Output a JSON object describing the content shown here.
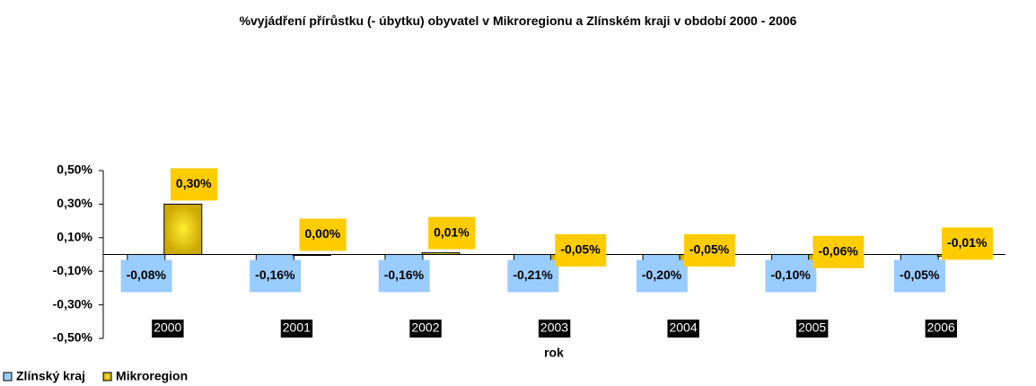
{
  "chart_data": {
    "type": "bar",
    "title": "%vyjádření přírůstku (- úbytku) obyvatel v Mikroregionu a Zlínském kraji v období 2000 - 2006",
    "x_label": "rok",
    "categories": [
      "2000",
      "2001",
      "2002",
      "2003",
      "2004",
      "2005",
      "2006"
    ],
    "series": [
      {
        "name": "Zlínský kraj",
        "color": "#99ccff",
        "values": [
          -0.08,
          -0.16,
          -0.16,
          -0.21,
          -0.2,
          -0.1,
          -0.05
        ],
        "value_labels": [
          "-0,08%",
          "-0,16%",
          "-0,16%",
          "-0,21%",
          "-0,20%",
          "-0,10%",
          "-0,05%"
        ]
      },
      {
        "name": "Mikroregion",
        "color": "#ccaa00",
        "values": [
          0.3,
          0.0,
          0.01,
          -0.05,
          -0.05,
          -0.06,
          -0.01
        ],
        "value_labels": [
          "0,30%",
          "0,00%",
          "0,01%",
          "-0,05%",
          "-0,05%",
          "-0,06%",
          "-0,01%"
        ]
      }
    ],
    "ylim": [
      -0.5,
      0.5
    ],
    "yticks": [
      {
        "value": -0.5,
        "label": "-0,50%"
      },
      {
        "value": -0.3,
        "label": "-0,30%"
      },
      {
        "value": -0.1,
        "label": "-0,10%"
      },
      {
        "value": 0.1,
        "label": "0,10%"
      },
      {
        "value": 0.3,
        "label": "0,30%"
      },
      {
        "value": 0.5,
        "label": "0,50%"
      }
    ],
    "legend": "bottom-left"
  }
}
